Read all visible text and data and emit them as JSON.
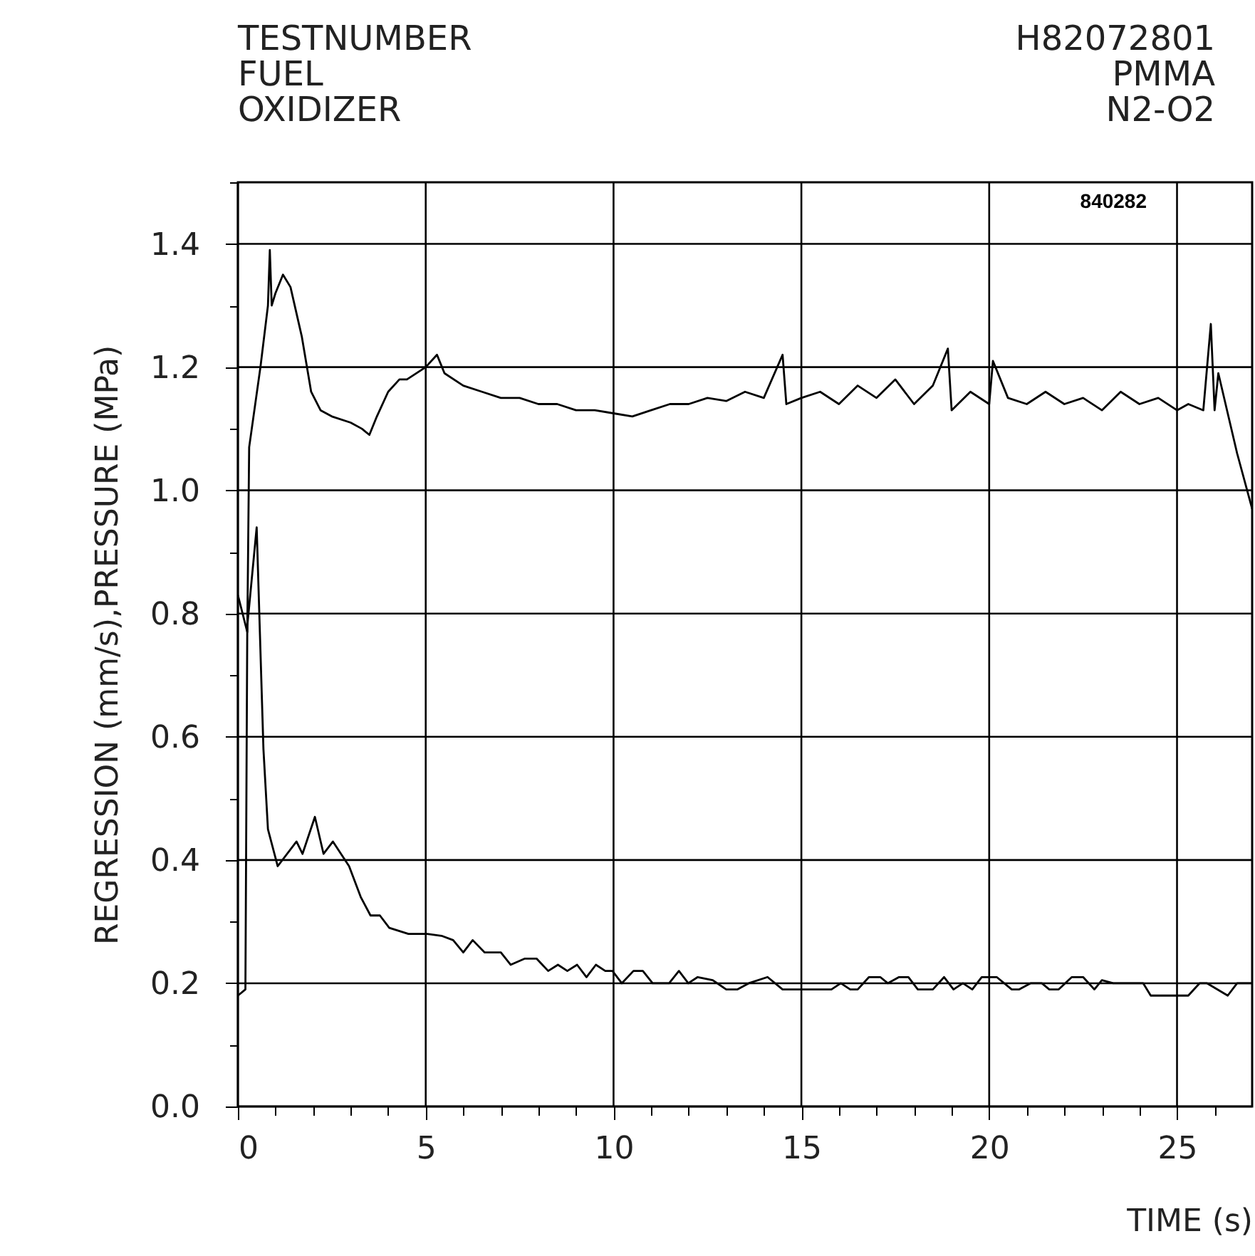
{
  "chart_data": {
    "type": "line",
    "xlabel": "TIME (s)",
    "ylabel": "REGRESSION (mm/s),PRESSURE (MPa)",
    "annotations": [
      "TESTNUMBER",
      "FUEL",
      "OXIDIZER",
      "H82072801",
      "PMMA",
      "N2-O2",
      "840282"
    ],
    "xlim": [
      0,
      27
    ],
    "ylim": [
      0,
      1.5
    ],
    "xticks": [
      0,
      {
        "value": 1,
        "label": null
      },
      {
        "value": 2,
        "label": null
      },
      {
        "value": 3,
        "label": null
      },
      {
        "value": 4,
        "label": null
      },
      5,
      {
        "value": 6,
        "label": null
      },
      {
        "value": 7,
        "label": null
      },
      {
        "value": 8,
        "label": null
      },
      {
        "value": 9,
        "label": null
      },
      10,
      {
        "value": 11,
        "label": null
      },
      {
        "value": 12,
        "label": null
      },
      {
        "value": 13,
        "label": null
      },
      {
        "value": 14,
        "label": null
      },
      15,
      {
        "value": 16,
        "label": null
      },
      {
        "value": 17,
        "label": null
      },
      {
        "value": 18,
        "label": null
      },
      {
        "value": 19,
        "label": null
      },
      20,
      {
        "value": 21,
        "label": null
      },
      {
        "value": 22,
        "label": null
      },
      {
        "value": 23,
        "label": null
      },
      {
        "value": 24,
        "label": null
      },
      25,
      {
        "value": 26,
        "label": null
      }
    ],
    "yticks": [
      {
        "value": 0,
        "label": "0.0"
      },
      {
        "value": 0.1,
        "label": null
      },
      {
        "value": 0.2,
        "label": "0.2"
      },
      {
        "value": 0.3,
        "label": null
      },
      {
        "value": 0.4,
        "label": "0.4"
      },
      {
        "value": 0.5,
        "label": null
      },
      {
        "value": 0.6,
        "label": "0.6"
      },
      {
        "value": 0.7,
        "label": null
      },
      {
        "value": 0.8,
        "label": "0.8"
      },
      {
        "value": 0.9,
        "label": null
      },
      {
        "value": 1,
        "label": "1.0"
      },
      {
        "value": 1.1,
        "label": null
      },
      {
        "value": 1.2,
        "label": "1.2"
      },
      {
        "value": 1.3,
        "label": null
      },
      {
        "value": 1.4,
        "label": "1.4"
      },
      {
        "value": 1.5,
        "label": null
      }
    ],
    "grid": true,
    "series": [
      {
        "color": "#000000",
        "x": [
          0,
          0.25,
          0.3,
          0.6,
          0.8,
          0.85,
          0.9,
          1.0,
          1.2,
          1.4,
          1.7,
          1.95,
          2.2,
          2.5,
          3.0,
          3.3,
          3.5,
          3.7,
          4.0,
          4.3,
          4.5,
          5.0,
          5.3,
          5.5,
          6.0,
          6.5,
          7,
          7.5,
          8,
          8.5,
          9,
          9.5,
          10,
          10.5,
          11,
          11.5,
          12,
          12.5,
          13,
          13.5,
          14,
          14.5,
          14.6,
          15,
          15.5,
          16,
          16.5,
          17,
          17.5,
          18,
          18.5,
          18.9,
          19,
          19.5,
          20,
          20.1,
          20.5,
          21,
          21.5,
          22,
          22.5,
          23,
          23.5,
          24,
          24.5,
          25,
          25.3,
          25.7,
          25.9,
          26.0,
          26.1,
          26.6,
          27
        ],
        "values": [
          0.83,
          0.77,
          1.07,
          1.2,
          1.3,
          1.39,
          1.3,
          1.32,
          1.35,
          1.33,
          1.25,
          1.16,
          1.13,
          1.12,
          1.11,
          1.1,
          1.09,
          1.12,
          1.16,
          1.18,
          1.18,
          1.2,
          1.22,
          1.19,
          1.17,
          1.16,
          1.15,
          1.15,
          1.14,
          1.14,
          1.13,
          1.13,
          1.125,
          1.12,
          1.13,
          1.14,
          1.14,
          1.15,
          1.145,
          1.16,
          1.15,
          1.22,
          1.14,
          1.15,
          1.16,
          1.14,
          1.17,
          1.15,
          1.18,
          1.14,
          1.17,
          1.23,
          1.13,
          1.16,
          1.14,
          1.21,
          1.15,
          1.14,
          1.16,
          1.14,
          1.15,
          1.13,
          1.16,
          1.14,
          1.15,
          1.13,
          1.14,
          1.13,
          1.27,
          1.13,
          1.19,
          1.06,
          0.97
        ]
      },
      {
        "color": "#000000",
        "x": [
          0,
          0.2,
          0.25,
          0.5,
          0.68,
          0.8,
          1.06,
          1.56,
          1.72,
          2.05,
          2.28,
          2.53,
          2.96,
          3.27,
          3.53,
          3.78,
          4.03,
          4.54,
          5.04,
          5.42,
          5.73,
          6.0,
          6.25,
          6.57,
          7.0,
          7.26,
          7.64,
          7.95,
          8.26,
          8.52,
          8.77,
          9.03,
          9.28,
          9.53,
          9.78,
          9.97,
          10.22,
          10.53,
          10.78,
          11.04,
          11.48,
          11.74,
          11.99,
          12.24,
          12.64,
          13.0,
          13.3,
          13.6,
          14.1,
          14.5,
          15.8,
          16.05,
          16.3,
          16.5,
          16.8,
          17.1,
          17.3,
          17.6,
          17.85,
          18.1,
          18.5,
          18.8,
          19.05,
          19.3,
          19.55,
          19.8,
          20.2,
          20.6,
          20.8,
          21.1,
          21.4,
          21.6,
          21.85,
          22.2,
          22.5,
          22.8,
          23.0,
          23.3,
          24.1,
          24.3,
          25.3,
          25.6,
          25.8,
          26.35,
          26.6,
          27.0
        ],
        "values": [
          0.18,
          0.19,
          0.78,
          0.94,
          0.58,
          0.45,
          0.39,
          0.43,
          0.41,
          0.47,
          0.41,
          0.43,
          0.39,
          0.34,
          0.31,
          0.31,
          0.29,
          0.28,
          0.28,
          0.277,
          0.27,
          0.25,
          0.27,
          0.25,
          0.25,
          0.23,
          0.24,
          0.24,
          0.22,
          0.23,
          0.22,
          0.23,
          0.21,
          0.23,
          0.22,
          0.22,
          0.2,
          0.22,
          0.22,
          0.2,
          0.2,
          0.22,
          0.2,
          0.21,
          0.205,
          0.19,
          0.19,
          0.2,
          0.21,
          0.19,
          0.19,
          0.2,
          0.19,
          0.19,
          0.21,
          0.21,
          0.2,
          0.21,
          0.21,
          0.19,
          0.19,
          0.21,
          0.19,
          0.2,
          0.19,
          0.21,
          0.21,
          0.19,
          0.19,
          0.2,
          0.2,
          0.19,
          0.19,
          0.21,
          0.21,
          0.19,
          0.205,
          0.2,
          0.2,
          0.18,
          0.18,
          0.2,
          0.2,
          0.18,
          0.2,
          0.2
        ]
      }
    ]
  }
}
